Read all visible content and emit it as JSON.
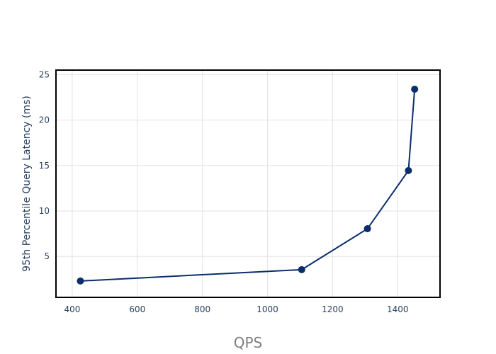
{
  "chart_data": {
    "type": "line",
    "title": "",
    "xlabel": "QPS",
    "ylabel": "95th Percentile Query Latency (ms)",
    "xlim": [
      350,
      1530
    ],
    "ylim": [
      0.5,
      25.5
    ],
    "xticks": [
      400,
      600,
      800,
      1000,
      1200,
      1400
    ],
    "yticks": [
      5,
      10,
      15,
      20,
      25
    ],
    "grid": true,
    "series": [
      {
        "color": "#0b2d6b",
        "x": [
          425,
          1105,
          1307,
          1433,
          1452
        ],
        "y": [
          2.3,
          3.55,
          8.05,
          14.45,
          23.4
        ]
      }
    ]
  }
}
